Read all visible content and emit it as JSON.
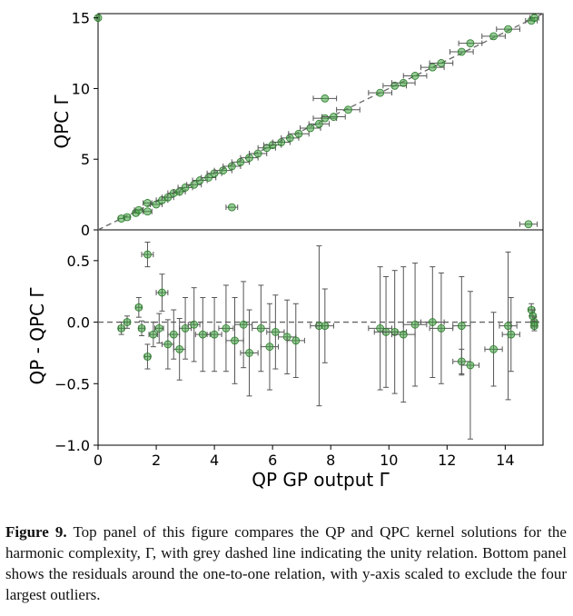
{
  "caption": {
    "label": "Figure 9.",
    "text": "Top panel of this figure compares the QP and QPC kernel solutions for the harmonic complexity, Γ, with grey dashed line indicating the unity relation. Bottom panel shows the residuals around the one-to-one relation, with y-axis scaled to exclude the four largest outliers."
  },
  "chart_data": [
    {
      "type": "scatter",
      "panel": "top",
      "ylabel": "QPC Γ",
      "xlim": [
        0,
        15.3
      ],
      "ylim": [
        0,
        15.3
      ],
      "yticks": [
        "0",
        "5",
        "10",
        "15"
      ],
      "reference_line": "unity (y = x), grey dashed",
      "marker_color": "#3fa33f",
      "points": [
        {
          "x": 0.0,
          "y": 15.0,
          "xerr": 0.05
        },
        {
          "x": 0.8,
          "y": 0.8,
          "xerr": 0.1
        },
        {
          "x": 1.0,
          "y": 0.9,
          "xerr": 0.1
        },
        {
          "x": 1.3,
          "y": 1.2,
          "xerr": 0.1
        },
        {
          "x": 1.4,
          "y": 1.4,
          "xerr": 0.15
        },
        {
          "x": 1.7,
          "y": 1.3,
          "xerr": 0.15
        },
        {
          "x": 1.7,
          "y": 1.9,
          "xerr": 0.15
        },
        {
          "x": 2.0,
          "y": 1.8,
          "xerr": 0.2
        },
        {
          "x": 2.2,
          "y": 2.1,
          "xerr": 0.2
        },
        {
          "x": 2.4,
          "y": 2.3,
          "xerr": 0.2
        },
        {
          "x": 2.6,
          "y": 2.6,
          "xerr": 0.2
        },
        {
          "x": 2.8,
          "y": 2.7,
          "xerr": 0.2
        },
        {
          "x": 3.0,
          "y": 3.0,
          "xerr": 0.25
        },
        {
          "x": 3.3,
          "y": 3.2,
          "xerr": 0.25
        },
        {
          "x": 3.5,
          "y": 3.5,
          "xerr": 0.25
        },
        {
          "x": 3.8,
          "y": 3.7,
          "xerr": 0.25
        },
        {
          "x": 4.0,
          "y": 4.0,
          "xerr": 0.25
        },
        {
          "x": 4.3,
          "y": 4.2,
          "xerr": 0.3
        },
        {
          "x": 4.6,
          "y": 4.5,
          "xerr": 0.3
        },
        {
          "x": 4.6,
          "y": 1.6,
          "xerr": 0.2
        },
        {
          "x": 4.9,
          "y": 4.8,
          "xerr": 0.3
        },
        {
          "x": 5.2,
          "y": 5.1,
          "xerr": 0.3
        },
        {
          "x": 5.5,
          "y": 5.4,
          "xerr": 0.3
        },
        {
          "x": 5.8,
          "y": 5.8,
          "xerr": 0.3
        },
        {
          "x": 6.0,
          "y": 6.0,
          "xerr": 0.3
        },
        {
          "x": 6.3,
          "y": 6.2,
          "xerr": 0.3
        },
        {
          "x": 6.6,
          "y": 6.5,
          "xerr": 0.3
        },
        {
          "x": 6.9,
          "y": 6.8,
          "xerr": 0.35
        },
        {
          "x": 7.3,
          "y": 7.2,
          "xerr": 0.35
        },
        {
          "x": 7.6,
          "y": 7.5,
          "xerr": 0.35
        },
        {
          "x": 7.8,
          "y": 7.9,
          "xerr": 0.4
        },
        {
          "x": 7.8,
          "y": 9.3,
          "xerr": 0.4
        },
        {
          "x": 8.1,
          "y": 8.0,
          "xerr": 0.4
        },
        {
          "x": 8.6,
          "y": 8.5,
          "xerr": 0.4
        },
        {
          "x": 9.7,
          "y": 9.7,
          "xerr": 0.4
        },
        {
          "x": 10.2,
          "y": 10.2,
          "xerr": 0.4
        },
        {
          "x": 10.5,
          "y": 10.4,
          "xerr": 0.4
        },
        {
          "x": 10.9,
          "y": 10.9,
          "xerr": 0.4
        },
        {
          "x": 11.5,
          "y": 11.5,
          "xerr": 0.4
        },
        {
          "x": 11.8,
          "y": 11.8,
          "xerr": 0.4
        },
        {
          "x": 12.5,
          "y": 12.6,
          "xerr": 0.4
        },
        {
          "x": 12.8,
          "y": 13.2,
          "xerr": 0.4
        },
        {
          "x": 13.6,
          "y": 13.7,
          "xerr": 0.4
        },
        {
          "x": 14.1,
          "y": 14.2,
          "xerr": 0.4
        },
        {
          "x": 14.8,
          "y": 0.4,
          "xerr": 0.3
        },
        {
          "x": 14.9,
          "y": 14.8,
          "xerr": 0.2
        },
        {
          "x": 15.0,
          "y": 15.0,
          "xerr": 0.15
        }
      ]
    },
    {
      "type": "scatter",
      "panel": "bottom",
      "xlabel": "QP GP output Γ",
      "ylabel": "QP - QPC Γ",
      "xlim": [
        0,
        15.3
      ],
      "ylim": [
        -1.0,
        0.75
      ],
      "xticks": [
        "0",
        "2",
        "4",
        "6",
        "8",
        "10",
        "12",
        "14"
      ],
      "yticks": [
        "−1.0",
        "−0.5",
        "0.0",
        "0.5"
      ],
      "reference_line": "zero, grey dashed",
      "marker_color": "#3fa33f",
      "points": [
        {
          "x": 0.8,
          "y": -0.05,
          "yerr": 0.05,
          "xerr": 0.1
        },
        {
          "x": 1.0,
          "y": 0.0,
          "yerr": 0.05,
          "xerr": 0.1
        },
        {
          "x": 1.4,
          "y": 0.12,
          "yerr": 0.08,
          "xerr": 0.1
        },
        {
          "x": 1.5,
          "y": -0.05,
          "yerr": 0.06,
          "xerr": 0.1
        },
        {
          "x": 1.7,
          "y": 0.55,
          "yerr": 0.1,
          "xerr": 0.2
        },
        {
          "x": 1.7,
          "y": -0.28,
          "yerr": 0.1,
          "xerr": 0.1
        },
        {
          "x": 1.9,
          "y": -0.1,
          "yerr": 0.1,
          "xerr": 0.15
        },
        {
          "x": 2.1,
          "y": -0.05,
          "yerr": 0.12,
          "xerr": 0.15
        },
        {
          "x": 2.2,
          "y": 0.24,
          "yerr": 0.15,
          "xerr": 0.2
        },
        {
          "x": 2.4,
          "y": -0.18,
          "yerr": 0.2,
          "xerr": 0.2
        },
        {
          "x": 2.6,
          "y": -0.1,
          "yerr": 0.2,
          "xerr": 0.2
        },
        {
          "x": 2.8,
          "y": -0.22,
          "yerr": 0.25,
          "xerr": 0.2
        },
        {
          "x": 3.0,
          "y": -0.05,
          "yerr": 0.25,
          "xerr": 0.2
        },
        {
          "x": 3.3,
          "y": -0.02,
          "yerr": 0.3,
          "xerr": 0.2
        },
        {
          "x": 3.6,
          "y": -0.1,
          "yerr": 0.3,
          "xerr": 0.25
        },
        {
          "x": 4.0,
          "y": -0.1,
          "yerr": 0.3,
          "xerr": 0.25
        },
        {
          "x": 4.4,
          "y": -0.05,
          "yerr": 0.35,
          "xerr": 0.25
        },
        {
          "x": 4.7,
          "y": -0.15,
          "yerr": 0.35,
          "xerr": 0.3
        },
        {
          "x": 5.0,
          "y": -0.02,
          "yerr": 0.35,
          "xerr": 0.3
        },
        {
          "x": 5.2,
          "y": -0.25,
          "yerr": 0.35,
          "xerr": 0.3
        },
        {
          "x": 5.6,
          "y": -0.05,
          "yerr": 0.35,
          "xerr": 0.3
        },
        {
          "x": 5.9,
          "y": -0.2,
          "yerr": 0.35,
          "xerr": 0.3
        },
        {
          "x": 6.1,
          "y": -0.08,
          "yerr": 0.3,
          "xerr": 0.3
        },
        {
          "x": 6.5,
          "y": -0.12,
          "yerr": 0.3,
          "xerr": 0.3
        },
        {
          "x": 6.8,
          "y": -0.15,
          "yerr": 0.3,
          "xerr": 0.3
        },
        {
          "x": 7.6,
          "y": -0.03,
          "yerr": 0.65,
          "xerr": 0.3
        },
        {
          "x": 7.8,
          "y": -0.03,
          "yerr": 0.3,
          "xerr": 0.3
        },
        {
          "x": 9.7,
          "y": -0.05,
          "yerr": 0.5,
          "xerr": 0.4
        },
        {
          "x": 9.9,
          "y": -0.08,
          "yerr": 0.45,
          "xerr": 0.4
        },
        {
          "x": 10.2,
          "y": -0.08,
          "yerr": 0.5,
          "xerr": 0.4
        },
        {
          "x": 10.5,
          "y": -0.1,
          "yerr": 0.55,
          "xerr": 0.4
        },
        {
          "x": 10.9,
          "y": -0.02,
          "yerr": 0.5,
          "xerr": 0.4
        },
        {
          "x": 11.5,
          "y": 0.0,
          "yerr": 0.45,
          "xerr": 0.4
        },
        {
          "x": 11.8,
          "y": -0.05,
          "yerr": 0.45,
          "xerr": 0.4
        },
        {
          "x": 12.5,
          "y": -0.03,
          "yerr": 0.4,
          "xerr": 0.3
        },
        {
          "x": 12.5,
          "y": -0.32,
          "yerr": 0.1,
          "xerr": 0.3
        },
        {
          "x": 12.8,
          "y": -0.35,
          "yerr": 0.6,
          "xerr": 0.3
        },
        {
          "x": 13.6,
          "y": -0.22,
          "yerr": 0.3,
          "xerr": 0.3
        },
        {
          "x": 14.1,
          "y": -0.03,
          "yerr": 0.6,
          "xerr": 0.3
        },
        {
          "x": 14.2,
          "y": -0.1,
          "yerr": 0.3,
          "xerr": 0.3
        },
        {
          "x": 14.9,
          "y": 0.1,
          "yerr": 0.05,
          "xerr": 0.1
        },
        {
          "x": 14.95,
          "y": 0.05,
          "yerr": 0.05,
          "xerr": 0.1
        },
        {
          "x": 15.0,
          "y": 0.0,
          "yerr": 0.04,
          "xerr": 0.1
        },
        {
          "x": 15.0,
          "y": -0.03,
          "yerr": 0.04,
          "xerr": 0.1
        }
      ]
    }
  ]
}
